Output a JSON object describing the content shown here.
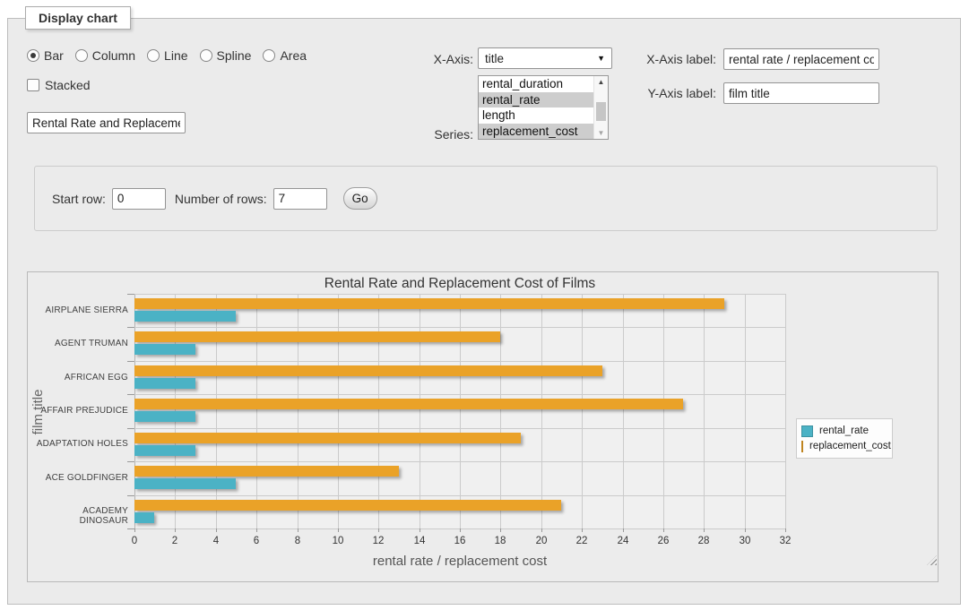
{
  "panel": {
    "legend_title": "Display chart"
  },
  "form": {
    "chart_types": [
      "Bar",
      "Column",
      "Line",
      "Spline",
      "Area"
    ],
    "chart_type_selected": "Bar",
    "stacked_label": "Stacked",
    "stacked_checked": false,
    "title_value": "Rental Rate and Replacement Cost of Films",
    "x_axis_label_text": "X-Axis:",
    "x_axis_selected": "title",
    "series_label_text": "Series:",
    "series_options": [
      {
        "name": "rental_duration",
        "selected": false
      },
      {
        "name": "rental_rate",
        "selected": true
      },
      {
        "name": "length",
        "selected": false
      },
      {
        "name": "replacement_cost",
        "selected": true
      }
    ],
    "x_axis_label_field": {
      "label": "X-Axis label:",
      "value": "rental rate / replacement cost"
    },
    "y_axis_label_field": {
      "label": "Y-Axis label:",
      "value": "film title"
    }
  },
  "rows_form": {
    "start_row_label": "Start row:",
    "start_row_value": "0",
    "num_rows_label": "Number of rows:",
    "num_rows_value": "7",
    "go_label": "Go"
  },
  "chart_data": {
    "type": "bar",
    "orientation": "horizontal",
    "title": "Rental Rate and Replacement Cost of Films",
    "xlabel": "rental rate / replacement cost",
    "ylabel": "film title",
    "categories": [
      "AIRPLANE SIERRA",
      "AGENT TRUMAN",
      "AFRICAN EGG",
      "AFFAIR PREJUDICE",
      "ADAPTATION HOLES",
      "ACE GOLDFINGER",
      "ACADEMY DINOSAUR"
    ],
    "series": [
      {
        "name": "rental_rate",
        "color": "#4bb2c5",
        "values": [
          4.99,
          2.99,
          2.99,
          2.99,
          2.99,
          4.99,
          0.99
        ]
      },
      {
        "name": "replacement_cost",
        "color": "#eaa228",
        "values": [
          28.99,
          17.99,
          22.99,
          26.99,
          18.99,
          12.99,
          20.99
        ]
      }
    ],
    "xlim": [
      0,
      32
    ],
    "xticks": [
      0,
      2,
      4,
      6,
      8,
      10,
      12,
      14,
      16,
      18,
      20,
      22,
      24,
      26,
      28,
      30,
      32
    ],
    "grid": true,
    "legend_position": "right"
  }
}
